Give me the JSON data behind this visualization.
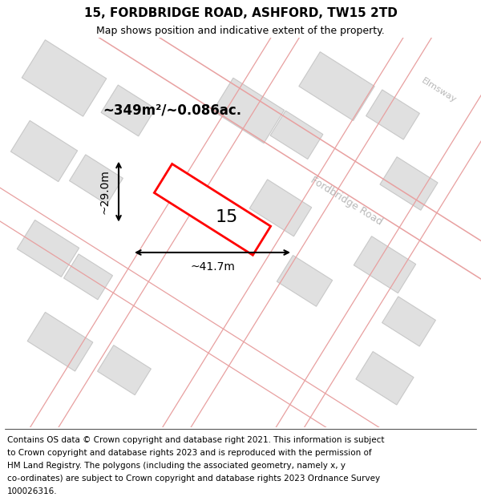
{
  "title": "15, FORDBRIDGE ROAD, ASHFORD, TW15 2TD",
  "subtitle": "Map shows position and indicative extent of the property.",
  "footer_lines": [
    "Contains OS data © Crown copyright and database right 2021. This information is subject",
    "to Crown copyright and database rights 2023 and is reproduced with the permission of",
    "HM Land Registry. The polygons (including the associated geometry, namely x, y",
    "co-ordinates) are subject to Crown copyright and database rights 2023 Ordnance Survey",
    "100026316."
  ],
  "area_text": "~349m²/~0.086ac.",
  "width_text": "~41.7m",
  "height_text": "~29.0m",
  "number_text": "15",
  "map_bg": "#f2f2f2",
  "building_fill": "#e0e0e0",
  "building_edge": "#c8c8c8",
  "road_line_color": "#e8a0a0",
  "highlight_color": "#ff0000",
  "highlight_fill": "#ffffff",
  "road_label_color": "#b8b8b8",
  "title_fontsize": 11,
  "subtitle_fontsize": 9,
  "footer_fontsize": 7.5
}
